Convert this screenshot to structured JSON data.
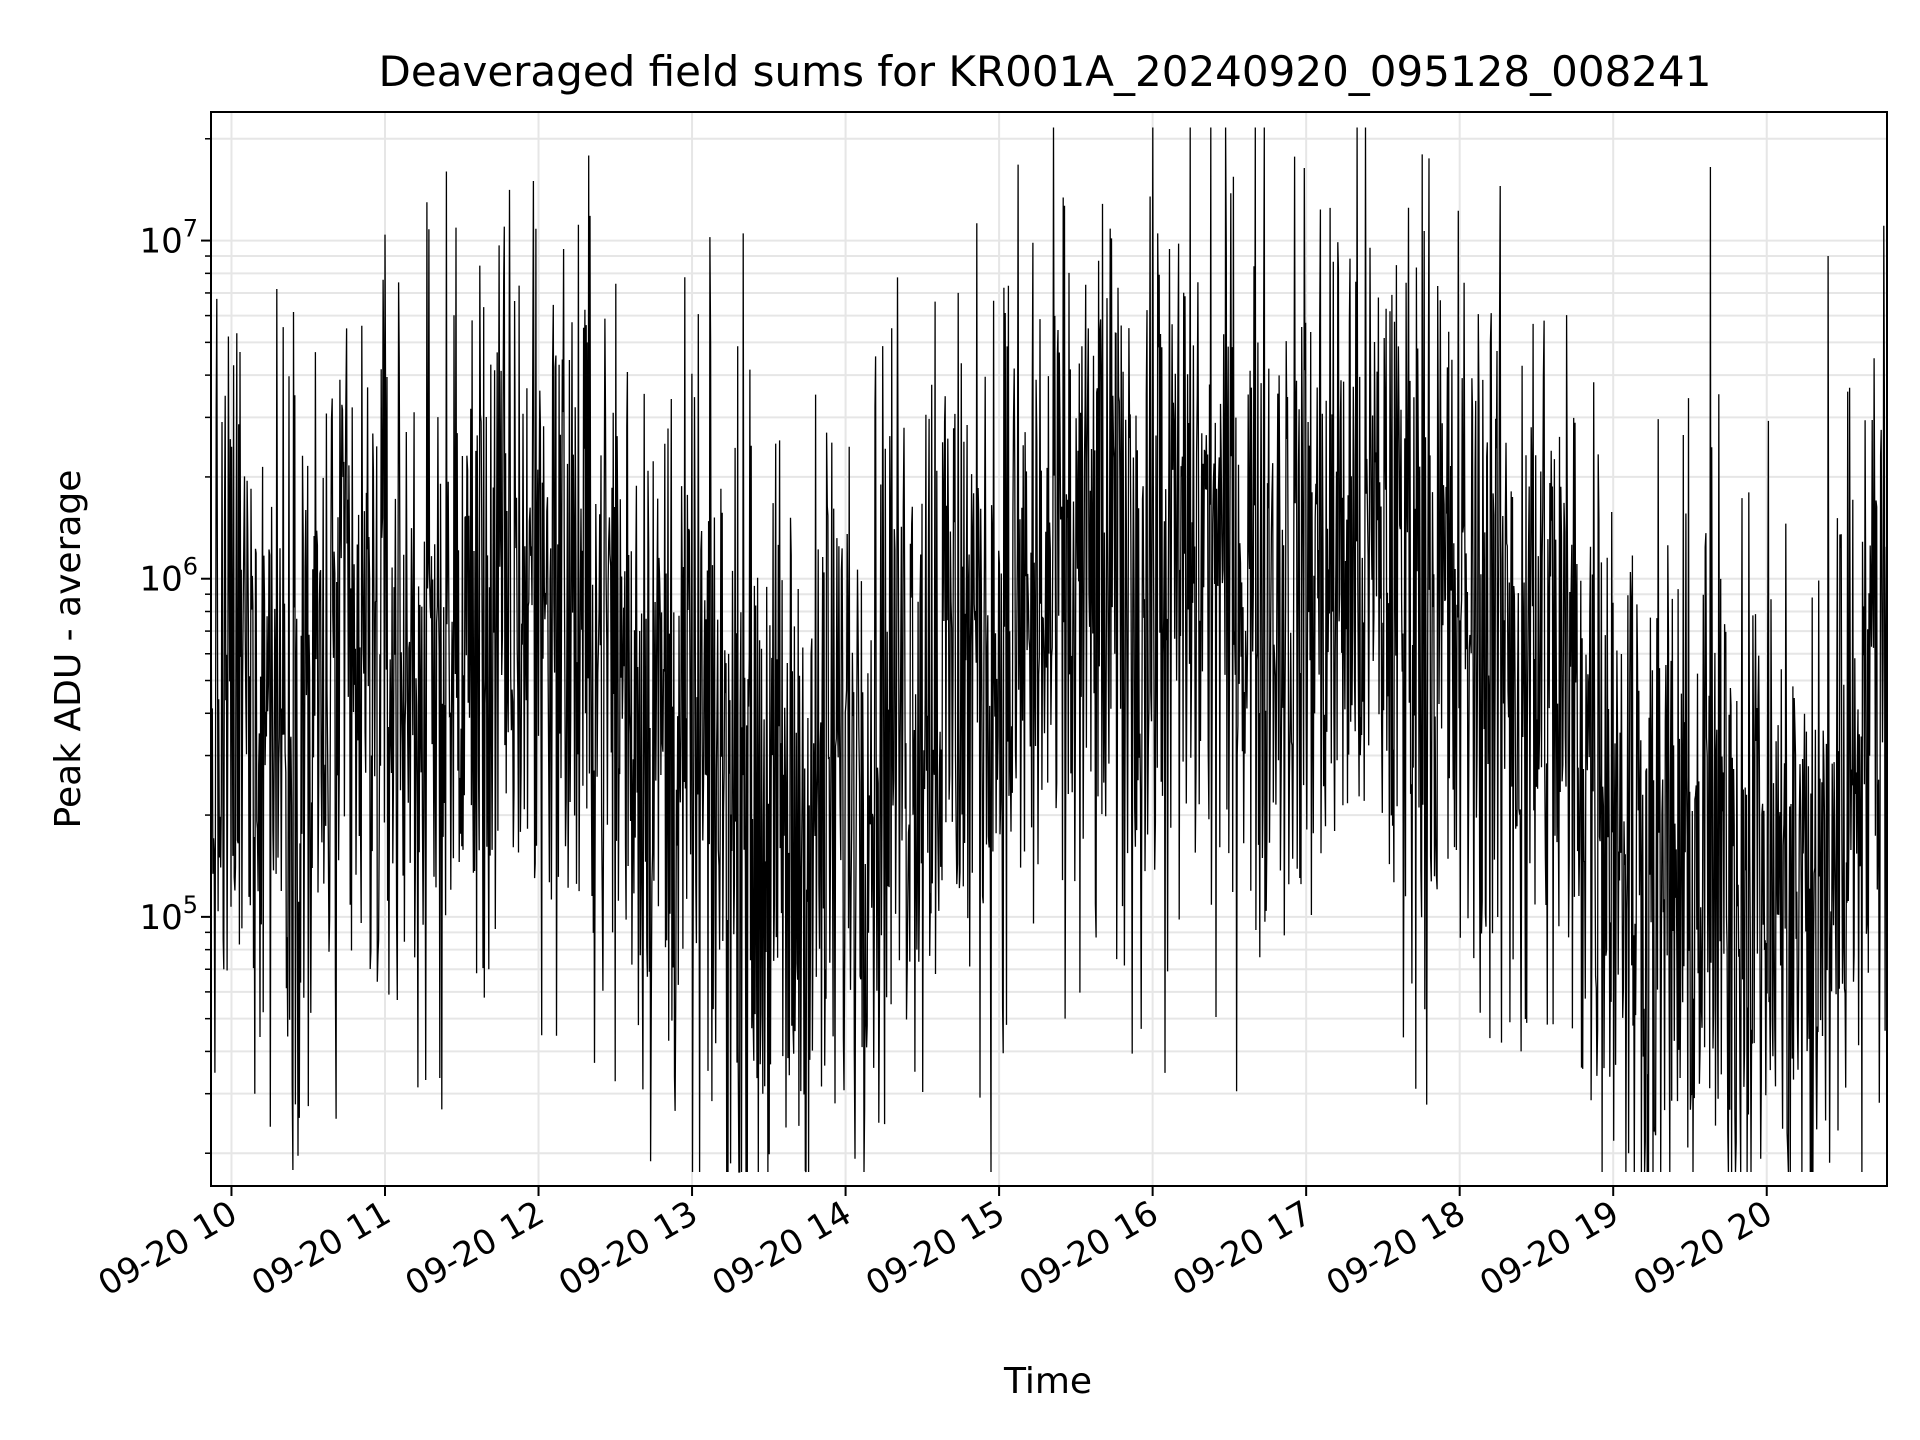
{
  "chart_data": {
    "type": "line",
    "title": "Deaveraged field sums for KR001A_20240920_095128_008241",
    "xlabel": "Time",
    "ylabel": "Peak ADU - average",
    "yscale": "log",
    "ylim": [
      16000,
      24000000
    ],
    "xlim": [
      "2024-09-20 09:52",
      "2024-09-20 20:47"
    ],
    "grid": true,
    "line_color": "#000000",
    "x_ticks": [
      "09-20 10",
      "09-20 11",
      "09-20 12",
      "09-20 13",
      "09-20 14",
      "09-20 15",
      "09-20 16",
      "09-20 17",
      "09-20 18",
      "09-20 19",
      "09-20 20"
    ],
    "y_ticks": [
      {
        "base": "10",
        "exp": "5",
        "value": 100000
      },
      {
        "base": "10",
        "exp": "6",
        "value": 1000000
      },
      {
        "base": "10",
        "exp": "7",
        "value": 10000000
      }
    ],
    "series": [
      {
        "x": [
          "2024-09-20 09:52",
          "2024-09-20 10:00",
          "2024-09-20 10:10",
          "2024-09-20 10:20",
          "2024-09-20 10:30",
          "2024-09-20 10:40",
          "2024-09-20 10:50",
          "2024-09-20 11:00",
          "2024-09-20 11:10",
          "2024-09-20 11:20",
          "2024-09-20 11:30",
          "2024-09-20 11:40",
          "2024-09-20 11:50",
          "2024-09-20 12:00",
          "2024-09-20 12:10",
          "2024-09-20 12:20",
          "2024-09-20 12:30",
          "2024-09-20 12:40",
          "2024-09-20 12:50",
          "2024-09-20 13:00",
          "2024-09-20 13:10",
          "2024-09-20 13:20",
          "2024-09-20 13:30",
          "2024-09-20 13:40",
          "2024-09-20 13:50",
          "2024-09-20 14:00",
          "2024-09-20 14:10",
          "2024-09-20 14:20",
          "2024-09-20 14:30",
          "2024-09-20 14:40",
          "2024-09-20 14:50",
          "2024-09-20 15:00",
          "2024-09-20 15:10",
          "2024-09-20 15:20",
          "2024-09-20 15:30",
          "2024-09-20 15:40",
          "2024-09-20 15:50",
          "2024-09-20 16:00",
          "2024-09-20 16:10",
          "2024-09-20 16:20",
          "2024-09-20 16:30",
          "2024-09-20 16:40",
          "2024-09-20 16:50",
          "2024-09-20 17:00",
          "2024-09-20 17:10",
          "2024-09-20 17:20",
          "2024-09-20 17:30",
          "2024-09-20 17:40",
          "2024-09-20 17:50",
          "2024-09-20 18:00",
          "2024-09-20 18:10",
          "2024-09-20 18:20",
          "2024-09-20 18:30",
          "2024-09-20 18:40",
          "2024-09-20 18:50",
          "2024-09-20 19:00",
          "2024-09-20 19:10",
          "2024-09-20 19:20",
          "2024-09-20 19:30",
          "2024-09-20 19:40",
          "2024-09-20 19:50",
          "2024-09-20 20:00",
          "2024-09-20 20:10",
          "2024-09-20 20:20",
          "2024-09-20 20:30",
          "2024-09-20 20:40",
          "2024-09-20 20:47"
        ],
        "values": [
          280000,
          450000,
          500000,
          450000,
          420000,
          380000,
          450000,
          580000,
          520000,
          420000,
          600000,
          700000,
          850000,
          1000000,
          900000,
          750000,
          600000,
          450000,
          350000,
          300000,
          250000,
          200000,
          180000,
          160000,
          200000,
          280000,
          350000,
          450000,
          500000,
          520000,
          600000,
          650000,
          700000,
          800000,
          900000,
          950000,
          900000,
          850000,
          1000000,
          1200000,
          1100000,
          1000000,
          950000,
          1000000,
          1100000,
          1200000,
          1100000,
          1000000,
          800000,
          700000,
          650000,
          600000,
          550000,
          450000,
          350000,
          250000,
          130000,
          120000,
          130000,
          150000,
          140000,
          130000,
          100000,
          90000,
          250000,
          500000,
          600000
        ],
        "spikes": [
          {
            "x": "2024-09-20 09:57",
            "value": 70000
          },
          {
            "x": "2024-09-20 10:31",
            "value": 52000
          },
          {
            "x": "2024-09-20 10:45",
            "value": 5500000
          },
          {
            "x": "2024-09-20 11:24",
            "value": 16000000
          },
          {
            "x": "2024-09-20 11:58",
            "value": 15000000
          },
          {
            "x": "2024-09-20 12:19",
            "value": 5000000
          },
          {
            "x": "2024-09-20 13:18",
            "value": 42000
          },
          {
            "x": "2024-09-20 13:20",
            "value": 10500000
          },
          {
            "x": "2024-09-20 13:38",
            "value": 34000
          },
          {
            "x": "2024-09-20 14:35",
            "value": 6600000
          },
          {
            "x": "2024-09-20 14:44",
            "value": 7000000
          },
          {
            "x": "2024-09-20 15:59",
            "value": 13500000
          },
          {
            "x": "2024-09-20 16:02",
            "value": 10500000
          },
          {
            "x": "2024-09-20 17:38",
            "value": 44000
          },
          {
            "x": "2024-09-20 17:40",
            "value": 12500000
          },
          {
            "x": "2024-09-20 17:48",
            "value": 17500000
          },
          {
            "x": "2024-09-20 18:12",
            "value": 5000000
          },
          {
            "x": "2024-09-20 18:24",
            "value": 40000
          },
          {
            "x": "2024-09-20 18:33",
            "value": 5800000
          },
          {
            "x": "2024-09-20 19:06",
            "value": 20000
          },
          {
            "x": "2024-09-20 19:38",
            "value": 16500000
          },
          {
            "x": "2024-09-20 19:41",
            "value": 29000
          },
          {
            "x": "2024-09-20 19:53",
            "value": 1800000
          },
          {
            "x": "2024-09-20 20:23",
            "value": 25000
          },
          {
            "x": "2024-09-20 20:24",
            "value": 9000000
          },
          {
            "x": "2024-09-20 20:46",
            "value": 3200000
          }
        ]
      }
    ]
  }
}
